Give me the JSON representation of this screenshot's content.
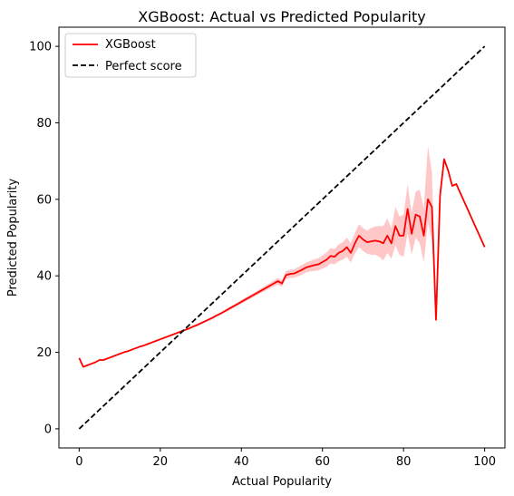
{
  "chart_data": {
    "type": "line",
    "title": "XGBoost: Actual vs Predicted Popularity",
    "xlabel": "Actual Popularity",
    "ylabel": "Predicted Popularity",
    "xlim": [
      -5,
      105
    ],
    "ylim": [
      -5,
      105
    ],
    "xticks": [
      0,
      20,
      40,
      60,
      80,
      100
    ],
    "yticks": [
      0,
      20,
      40,
      60,
      80,
      100
    ],
    "grid": false,
    "legend_position": "top-left",
    "series": [
      {
        "name": "XGBoost",
        "color": "#ff0000",
        "style": "solid",
        "band_color": "#ff0000",
        "x": [
          0,
          1,
          2,
          3,
          4,
          5,
          6,
          7,
          8,
          9,
          10,
          11,
          12,
          13,
          14,
          15,
          16,
          17,
          18,
          19,
          20,
          21,
          22,
          23,
          24,
          25,
          26,
          27,
          28,
          29,
          30,
          31,
          32,
          33,
          34,
          35,
          36,
          37,
          38,
          39,
          40,
          41,
          42,
          43,
          44,
          45,
          46,
          47,
          48,
          49,
          50,
          51,
          52,
          53,
          54,
          55,
          56,
          57,
          58,
          59,
          60,
          61,
          62,
          63,
          64,
          65,
          66,
          67,
          68,
          69,
          70,
          71,
          72,
          73,
          74,
          75,
          76,
          77,
          78,
          79,
          80,
          81,
          82,
          83,
          84,
          85,
          86,
          87,
          88,
          89,
          90,
          91,
          92,
          93,
          100
        ],
        "y": [
          18.5,
          16.2,
          16.6,
          17.0,
          17.4,
          18.0,
          18.0,
          18.4,
          18.8,
          19.2,
          19.6,
          20.0,
          20.3,
          20.7,
          21.1,
          21.5,
          21.8,
          22.2,
          22.6,
          23.0,
          23.4,
          23.8,
          24.2,
          24.6,
          25.0,
          25.4,
          25.8,
          26.2,
          26.7,
          27.1,
          27.6,
          28.1,
          28.6,
          29.1,
          29.7,
          30.2,
          30.8,
          31.4,
          32.0,
          32.6,
          33.2,
          33.8,
          34.4,
          35.0,
          35.6,
          36.2,
          36.8,
          37.4,
          38.0,
          38.6,
          38.0,
          40.2,
          40.5,
          40.6,
          41.1,
          41.6,
          42.2,
          42.5,
          42.8,
          43.0,
          43.6,
          44.2,
          45.2,
          45.0,
          46.0,
          46.5,
          47.5,
          46.0,
          48.5,
          50.5,
          49.5,
          48.8,
          49.0,
          49.2,
          49.0,
          48.5,
          50.5,
          48.5,
          53.0,
          50.5,
          50.5,
          57.5,
          51.0,
          56.0,
          55.5,
          50.5,
          60.0,
          58.0,
          28.5,
          61.0,
          70.5,
          67.5,
          63.5,
          64.0,
          47.5
        ],
        "lower": [
          18.3,
          16.0,
          16.4,
          16.8,
          17.2,
          17.8,
          17.8,
          18.2,
          18.6,
          19.0,
          19.4,
          19.8,
          20.1,
          20.5,
          20.9,
          21.3,
          21.6,
          22.0,
          22.4,
          22.8,
          23.2,
          23.6,
          24.0,
          24.4,
          24.8,
          25.2,
          25.6,
          26.0,
          26.4,
          26.8,
          27.3,
          27.8,
          28.3,
          28.8,
          29.4,
          29.9,
          30.4,
          31.0,
          31.6,
          32.2,
          32.7,
          33.3,
          33.9,
          34.5,
          35.0,
          35.6,
          36.1,
          36.7,
          37.2,
          37.7,
          37.1,
          39.2,
          39.4,
          39.5,
          39.9,
          40.3,
          40.9,
          41.1,
          41.3,
          41.4,
          41.9,
          42.3,
          43.2,
          43.0,
          43.8,
          44.2,
          45.0,
          43.5,
          45.8,
          47.5,
          46.5,
          45.8,
          45.5,
          45.5,
          45.0,
          44.0,
          46.0,
          44.5,
          48.0,
          45.5,
          45.0,
          51.0,
          45.5,
          50.0,
          48.5,
          43.5,
          54.0,
          49.0,
          28.5,
          61.0,
          70.5,
          67.5,
          63.5,
          64.0,
          47.5
        ],
        "upper": [
          18.7,
          16.4,
          16.8,
          17.2,
          17.6,
          18.2,
          18.2,
          18.6,
          19.0,
          19.4,
          19.8,
          20.2,
          20.5,
          20.9,
          21.3,
          21.7,
          22.0,
          22.4,
          22.8,
          23.2,
          23.6,
          24.0,
          24.4,
          24.8,
          25.2,
          25.6,
          26.0,
          26.4,
          27.0,
          27.4,
          27.9,
          28.4,
          28.9,
          29.4,
          30.0,
          30.5,
          31.2,
          31.8,
          32.4,
          33.0,
          33.7,
          34.3,
          34.9,
          35.5,
          36.2,
          36.8,
          37.5,
          38.1,
          38.8,
          39.5,
          38.9,
          41.2,
          41.6,
          41.7,
          42.3,
          42.9,
          43.5,
          43.9,
          44.3,
          44.6,
          45.3,
          46.1,
          47.2,
          47.0,
          48.2,
          48.8,
          50.0,
          48.5,
          51.2,
          53.5,
          52.5,
          51.8,
          52.5,
          52.9,
          53.0,
          53.0,
          55.0,
          52.5,
          58.0,
          55.5,
          56.0,
          64.0,
          56.5,
          62.0,
          62.5,
          57.5,
          74.0,
          67.0,
          28.5,
          61.0,
          70.5,
          67.5,
          63.5,
          64.0,
          47.5
        ]
      },
      {
        "name": "Perfect score",
        "color": "#000000",
        "style": "dashed",
        "x": [
          0,
          100
        ],
        "y": [
          0,
          100
        ]
      }
    ]
  }
}
